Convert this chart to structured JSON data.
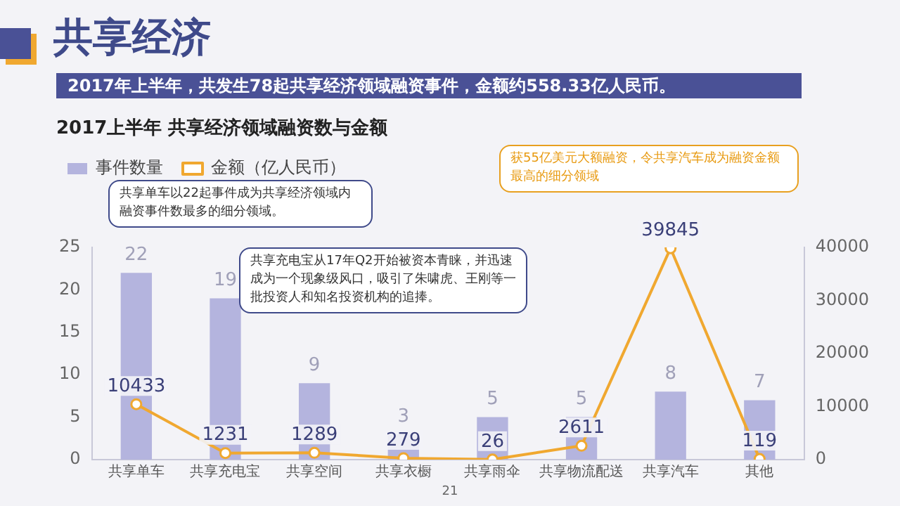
{
  "chart_data": {
    "type": "bar",
    "title": "共享经济",
    "subtitle": "2017年上半年，共发生78起共享经济领域融资事件，金额约558.33亿人民币。",
    "categories": [
      "共享单车",
      "共享充电宝",
      "共享空间",
      "共享衣橱",
      "共享雨伞",
      "共享物流配送",
      "共享汽车",
      "其他"
    ],
    "series": [
      {
        "name": "事件数量",
        "color": "#b4b4de",
        "values": [
          22,
          19,
          9,
          3,
          5,
          5,
          8,
          7
        ]
      },
      {
        "name": "金额（亿人民币）",
        "type": "line",
        "axis": "y2",
        "color": "#f0a830",
        "values": [
          10433,
          1231,
          1289,
          279,
          26,
          2611,
          39845,
          119
        ]
      }
    ],
    "ylim": [
      0,
      25
    ],
    "yticks": [
      0,
      5,
      10,
      15,
      20,
      25
    ],
    "y2lim": [
      0,
      40000
    ],
    "y2ticks": [
      0,
      10000,
      20000,
      30000,
      40000
    ],
    "data_labels": true,
    "grid": false,
    "legend": "top left",
    "marker": "circle",
    "annotations": [
      "2017上半年 共享经济领域融资数与金额",
      "共享单车以22起事件成为共享经济领域内融资事件数最多的细分领域。",
      "共享充电宝从17年Q2开始被资本青睐，并迅速成为一个现象级风口，吸引了朱啸虎、王刚等一批投资人和知名投资机构的追捧。",
      "获55亿美元大额融资，令共享汽车成为融资金额最高的细分领域",
      "21"
    ]
  }
}
